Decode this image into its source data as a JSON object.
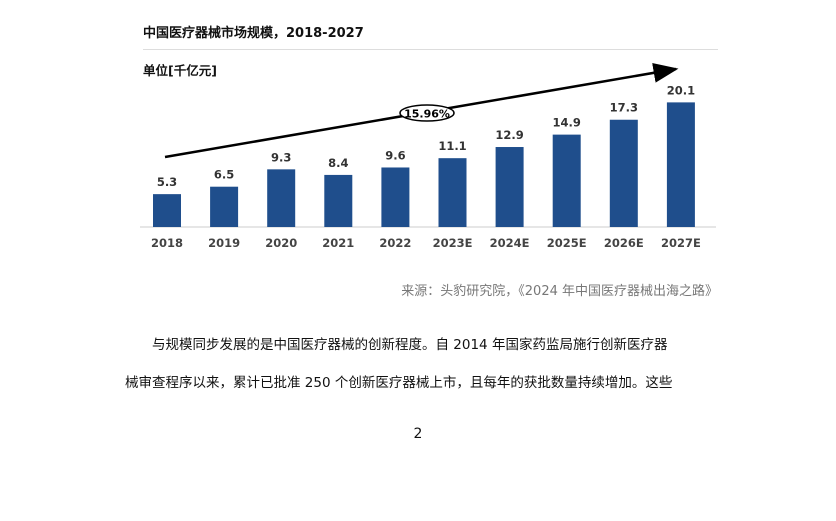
{
  "chart_data": {
    "type": "bar",
    "title": "中国医疗器械市场规模，2018-2027",
    "ylabel": "单位[千亿元]",
    "categories": [
      "2018",
      "2019",
      "2020",
      "2021",
      "2022",
      "2023E",
      "2024E",
      "2025E",
      "2026E",
      "2027E"
    ],
    "values": [
      5.3,
      6.5,
      9.3,
      8.4,
      9.6,
      11.1,
      12.9,
      14.9,
      17.3,
      20.1
    ],
    "annotation": "15.96%",
    "bar_color": "#1f4e8c",
    "grid": false
  },
  "source": "来源：头豹研究院，《2024 年中国医疗器械出海之路》",
  "body": {
    "line1": "与规模同步发展的是中国医疗器械的创新程度。自 2014 年国家药监局施行创新医疗器",
    "line2": "械审查程序以来，累计已批准 250 个创新医疗器械上市，且每年的获批数量持续增加。这些"
  },
  "page_number": "2"
}
